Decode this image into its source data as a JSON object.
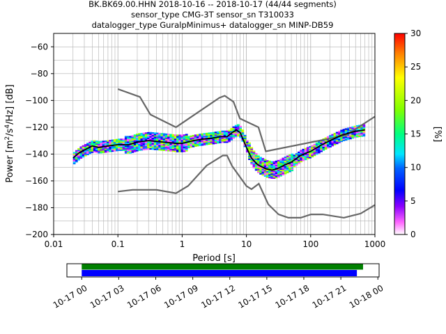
{
  "figure": {
    "title_lines": [
      "BK.BK69.00.HHN   2018-10-16 -- 2018-10-17  (44/44 segments)",
      "sensor_type CMG-3T sensor_sn T310033",
      "datalogger_type GuralpMinimus+ datalogger_sn MINP-DB59"
    ]
  },
  "chart_data": [
    {
      "type": "heatmap",
      "name": "ppsd",
      "xlabel": "Period [s]",
      "ylabel": "Power [m²/s⁴/Hz] [dB]",
      "xscale": "log",
      "xlim": [
        0.01,
        1000
      ],
      "ylim": [
        -200,
        -50
      ],
      "grid": true,
      "x_tick_labels": [
        "0.01",
        "0.1",
        "1",
        "10",
        "100",
        "1000"
      ],
      "x_ticks": [
        0.01,
        0.1,
        1,
        10,
        100,
        1000
      ],
      "y_ticks": [
        -60,
        -80,
        -100,
        -120,
        -140,
        -160,
        -180,
        -200
      ],
      "colorbar": {
        "label": "[%]",
        "range": [
          0,
          30
        ],
        "ticks": [
          0,
          5,
          10,
          15,
          20,
          25,
          30
        ],
        "colormap": "pqlx"
      },
      "noise_models": {
        "high": {
          "x": [
            0.1,
            0.22,
            0.32,
            0.8,
            3.8,
            4.6,
            6.3,
            7.9,
            15.4,
            20,
            354.8,
            1000
          ],
          "y": [
            -91.5,
            -97.4,
            -110.5,
            -120,
            -98,
            -96.5,
            -101,
            -113.5,
            -120,
            -138,
            -126,
            -112
          ]
        },
        "low": {
          "x": [
            0.1,
            0.17,
            0.4,
            0.8,
            1.24,
            2.4,
            4.3,
            5,
            6,
            10,
            12,
            15.6,
            21.9,
            31.6,
            45,
            70,
            101,
            154,
            328,
            600,
            1000
          ],
          "y": [
            -168,
            -166.7,
            -166.7,
            -169.2,
            -163.7,
            -148.6,
            -141.1,
            -141.1,
            -149,
            -163.8,
            -166.2,
            -162.1,
            -177.5,
            -185,
            -187.5,
            -187.5,
            -185,
            -185,
            -187.5,
            -184.4,
            -178
          ]
        }
      },
      "median": {
        "x": [
          0.02,
          0.025,
          0.03,
          0.04,
          0.05,
          0.07,
          0.1,
          0.15,
          0.2,
          0.3,
          0.5,
          0.8,
          1,
          1.5,
          2,
          3,
          4,
          5,
          6,
          7,
          8,
          10,
          12,
          15,
          20,
          25,
          30,
          40,
          50,
          70,
          100,
          150,
          200,
          300,
          500,
          700
        ],
        "y": [
          -143,
          -139,
          -137,
          -134,
          -135,
          -134,
          -133,
          -133,
          -131,
          -130,
          -131,
          -132,
          -132,
          -130,
          -129,
          -128,
          -127,
          -127,
          -124,
          -122,
          -124,
          -135,
          -143,
          -148,
          -151,
          -152,
          -151,
          -148,
          -146,
          -141,
          -138,
          -133,
          -130,
          -126,
          -123,
          -122
        ]
      },
      "segment_times": {
        "tick_labels": [
          "10-17 00",
          "10-17 03",
          "10-17 06",
          "10-17 09",
          "10-17 12",
          "10-17 15",
          "10-17 18",
          "10-17 21",
          "10-18 00"
        ],
        "range_hours": [
          -1.2,
          24.1
        ],
        "available_hours": [
          0,
          22.8
        ],
        "used_hours": [
          0,
          22.3
        ],
        "available_color": "#008000",
        "used_color": "#0000ff"
      }
    }
  ]
}
